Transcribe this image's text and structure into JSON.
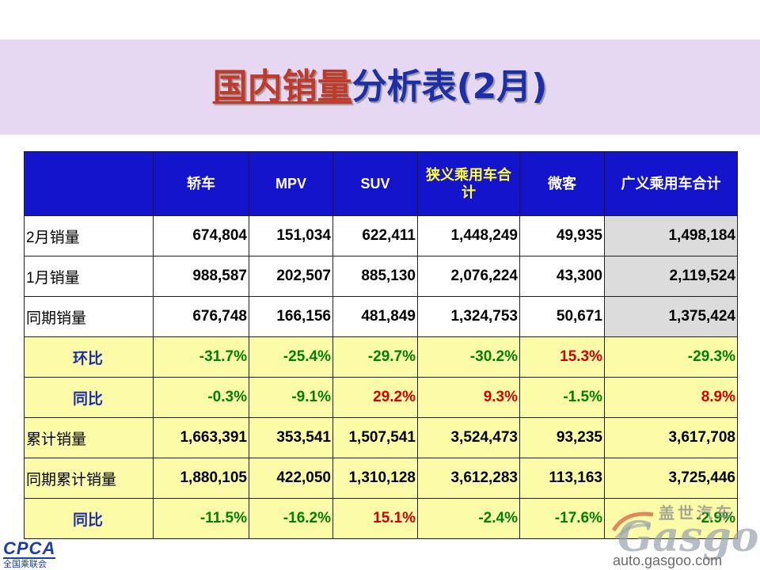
{
  "title": {
    "red_part": "国内销量",
    "blue_part": "分析表(2月)"
  },
  "table": {
    "headers": [
      "",
      "轿车",
      "MPV",
      "SUV",
      "狭义乘用车合计",
      "微客",
      "广义乘用车合计"
    ],
    "rows": [
      {
        "label": "2月销量",
        "values": [
          "674,804",
          "151,034",
          "622,411",
          "1,448,249",
          "49,935",
          "1,498,184"
        ]
      },
      {
        "label": "1月销量",
        "values": [
          "988,587",
          "202,507",
          "885,130",
          "2,076,224",
          "43,300",
          "2,119,524"
        ]
      },
      {
        "label": "同期销量",
        "values": [
          "676,748",
          "166,156",
          "481,849",
          "1,324,753",
          "50,671",
          "1,375,424"
        ]
      },
      {
        "label": "环比",
        "values": [
          "-31.7%",
          "-25.4%",
          "-29.7%",
          "-30.2%",
          "15.3%",
          "-29.3%"
        ]
      },
      {
        "label": "同比",
        "values": [
          "-0.3%",
          "-9.1%",
          "29.2%",
          "9.3%",
          "-1.5%",
          "8.9%"
        ]
      },
      {
        "label": "累计销量",
        "values": [
          "1,663,391",
          "353,541",
          "1,507,541",
          "3,524,473",
          "93,235",
          "3,617,708"
        ]
      },
      {
        "label": "同期累计销量",
        "values": [
          "1,880,105",
          "422,050",
          "1,310,128",
          "3,612,283",
          "113,163",
          "3,725,446"
        ]
      },
      {
        "label": "同比",
        "values": [
          "-11.5%",
          "-16.2%",
          "15.1%",
          "-2.4%",
          "-17.6%",
          "-2.9%"
        ]
      }
    ]
  },
  "logos": {
    "cpca_mark": "CPCA",
    "cpca_sub": "全国乘联会",
    "gasgoo_cn": "盖世汽车",
    "gasgoo_word": "Gasgoo",
    "gasgoo_url": "auto.gasgoo.com"
  },
  "colors": {
    "header_bg": "#1414cc",
    "title_band": "#e6d7f3",
    "yellow_row": "#fbfba8",
    "positive": "#008000",
    "negative": "#d40000"
  }
}
